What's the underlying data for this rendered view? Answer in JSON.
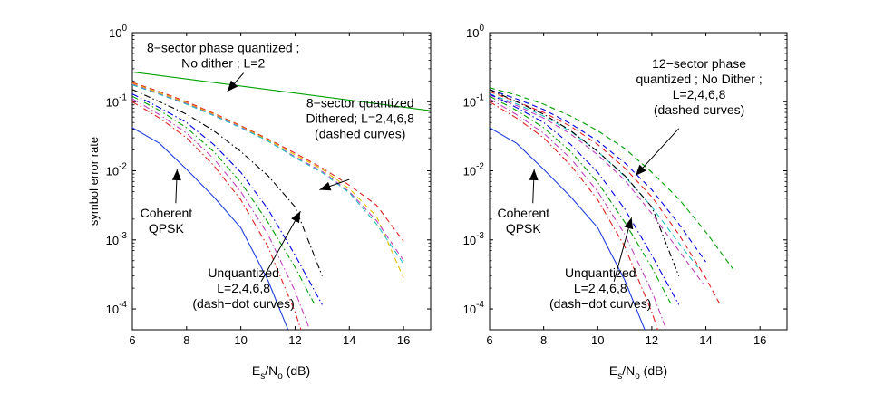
{
  "chart_data": [
    {
      "type": "line",
      "ylabel": "symbol error rate",
      "xlabel": {
        "main1": "E",
        "sub1": "s",
        "main2": "/N",
        "sub2": "o",
        "main3": " (dB)"
      },
      "xlim": [
        6,
        17
      ],
      "ylim": [
        5e-05,
        1
      ],
      "yscale": "log",
      "x_ticks": [
        6,
        8,
        10,
        12,
        14,
        16
      ],
      "y_ticks": [
        {
          "value": 1,
          "mant": "10",
          "exp": "0"
        },
        {
          "value": 0.1,
          "mant": "10",
          "exp": "-1"
        },
        {
          "value": 0.01,
          "mant": "10",
          "exp": "-2"
        },
        {
          "value": 0.001,
          "mant": "10",
          "exp": "-3"
        },
        {
          "value": 0.0001,
          "mant": "10",
          "exp": "-4"
        }
      ],
      "series": [
        {
          "style": "solid",
          "color": "#00a000",
          "x": [
            6,
            17
          ],
          "y": [
            0.27,
            0.074
          ]
        },
        {
          "style": "solid",
          "color": "#1f3fe0",
          "x": [
            6,
            7,
            8,
            9,
            10,
            11,
            12
          ],
          "y": [
            0.042,
            0.025,
            0.0105,
            0.0042,
            0.0015,
            0.00026,
            2.8e-05
          ]
        },
        {
          "style": "dash",
          "color": "#e02020",
          "x": [
            6,
            7,
            8,
            9,
            10,
            11,
            12,
            13,
            14,
            15,
            16
          ],
          "y": [
            0.19,
            0.14,
            0.1,
            0.068,
            0.045,
            0.029,
            0.018,
            0.011,
            0.0062,
            0.0032,
            0.00095
          ]
        },
        {
          "style": "dash",
          "color": "#e0c000",
          "x": [
            6,
            7,
            8,
            9,
            10,
            11,
            12,
            13,
            14,
            15,
            16
          ],
          "y": [
            0.185,
            0.135,
            0.096,
            0.066,
            0.044,
            0.028,
            0.017,
            0.0105,
            0.0055,
            0.0022,
            0.00028
          ]
        },
        {
          "style": "dash",
          "color": "#c040c0",
          "x": [
            6,
            7,
            8,
            9,
            10,
            11,
            12,
            13,
            14,
            15,
            16
          ],
          "y": [
            0.18,
            0.13,
            0.094,
            0.064,
            0.043,
            0.027,
            0.016,
            0.0098,
            0.005,
            0.0019,
            0.0005
          ]
        },
        {
          "style": "dash",
          "color": "#20c0c0",
          "x": [
            6,
            7,
            8,
            9,
            10,
            11,
            12,
            13,
            14,
            15,
            16
          ],
          "y": [
            0.175,
            0.128,
            0.092,
            0.063,
            0.042,
            0.027,
            0.0155,
            0.0094,
            0.0048,
            0.0017,
            0.00045
          ]
        },
        {
          "style": "dashdot",
          "color": "#000000",
          "x": [
            6,
            7,
            8,
            9,
            10,
            11,
            12,
            13
          ],
          "y": [
            0.15,
            0.1,
            0.066,
            0.038,
            0.019,
            0.0085,
            0.003,
            0.0003
          ]
        },
        {
          "style": "dashdot",
          "color": "#0000e0",
          "x": [
            6,
            7,
            8,
            9,
            10,
            11,
            12,
            13
          ],
          "y": [
            0.13,
            0.082,
            0.05,
            0.024,
            0.0095,
            0.0028,
            0.0006,
            0.000115
          ]
        },
        {
          "style": "dashdot",
          "color": "#00a000",
          "x": [
            6,
            7,
            8,
            9,
            10,
            11,
            12,
            12.7
          ],
          "y": [
            0.12,
            0.075,
            0.042,
            0.019,
            0.0068,
            0.0018,
            0.0004,
            0.00012
          ]
        },
        {
          "style": "dashdot",
          "color": "#c040c0",
          "x": [
            6,
            7,
            8,
            9,
            10,
            11,
            12,
            12.5
          ],
          "y": [
            0.11,
            0.065,
            0.035,
            0.015,
            0.005,
            0.0012,
            0.00018,
            5.5e-05
          ]
        },
        {
          "style": "dashdot",
          "color": "#e02020",
          "x": [
            6,
            7,
            8,
            9,
            10,
            11,
            12,
            12.3
          ],
          "y": [
            0.1,
            0.058,
            0.03,
            0.012,
            0.0038,
            0.0008,
            9e-05,
            4e-05
          ]
        }
      ],
      "annotations": [
        {
          "lines": [
            "8−sector phase quantized ;",
            "No dither ; L=2"
          ],
          "tx": 9.35,
          "ty": 0.52,
          "ax": 10.1,
          "ay": 0.26,
          "hx": 9.5,
          "hy": 0.14
        },
        {
          "lines": [
            "8−sector quantized",
            "Dithered; L=2,4,6,8",
            "(dashed curves)"
          ],
          "tx": 14.4,
          "ty": 0.083,
          "ax": 14.0,
          "ay": 0.0075,
          "hx": 12.9,
          "hy": 0.0053
        },
        {
          "lines": [
            "Coherent",
            "QPSK"
          ],
          "tx": 7.25,
          "ty": 0.0021,
          "ax": 7.6,
          "ay": 0.0034,
          "hx": 7.65,
          "hy": 0.0105
        },
        {
          "lines": [
            "Unquantized",
            "L=2,4,6,8",
            "(dash−dot curves)"
          ],
          "tx": 10.1,
          "ty": 0.00029,
          "ax": 10.75,
          "ay": 0.00025,
          "hx": 12.2,
          "hy": 0.0026
        }
      ]
    },
    {
      "type": "line",
      "ylabel": "",
      "xlabel": {
        "main1": "E",
        "sub1": "s",
        "main2": "/N",
        "sub2": "o",
        "main3": " (dB)"
      },
      "xlim": [
        6,
        17
      ],
      "ylim": [
        5e-05,
        1
      ],
      "yscale": "log",
      "x_ticks": [
        6,
        8,
        10,
        12,
        14,
        16
      ],
      "y_ticks": [
        {
          "value": 1,
          "mant": "10",
          "exp": "0"
        },
        {
          "value": 0.1,
          "mant": "10",
          "exp": "-1"
        },
        {
          "value": 0.01,
          "mant": "10",
          "exp": "-2"
        },
        {
          "value": 0.001,
          "mant": "10",
          "exp": "-3"
        },
        {
          "value": 0.0001,
          "mant": "10",
          "exp": "-4"
        }
      ],
      "series": [
        {
          "style": "solid",
          "color": "#1f3fe0",
          "x": [
            6,
            7,
            8,
            9,
            10,
            11,
            12
          ],
          "y": [
            0.042,
            0.025,
            0.0105,
            0.0042,
            0.0015,
            0.00026,
            2.8e-05
          ]
        },
        {
          "style": "dash",
          "color": "#00a000",
          "x": [
            6,
            7,
            8,
            9,
            10,
            11,
            12,
            13,
            14,
            15
          ],
          "y": [
            0.16,
            0.125,
            0.092,
            0.062,
            0.038,
            0.021,
            0.0095,
            0.0039,
            0.0013,
            0.00038
          ]
        },
        {
          "style": "dash",
          "color": "#0000e0",
          "x": [
            6,
            7,
            8,
            9,
            10,
            11,
            12,
            13,
            14
          ],
          "y": [
            0.15,
            0.11,
            0.077,
            0.048,
            0.027,
            0.013,
            0.0053,
            0.0017,
            0.00048
          ]
        },
        {
          "style": "dash",
          "color": "#e02020",
          "x": [
            6,
            7,
            8,
            9,
            10,
            11,
            12,
            13,
            14,
            14.5
          ],
          "y": [
            0.14,
            0.1,
            0.07,
            0.044,
            0.024,
            0.011,
            0.0042,
            0.0012,
            0.00028,
            0.00012
          ]
        },
        {
          "style": "dash",
          "color": "#20c0c0",
          "x": [
            6,
            7,
            8,
            9,
            10,
            11,
            12,
            13,
            13.7
          ],
          "y": [
            0.13,
            0.093,
            0.062,
            0.037,
            0.019,
            0.0083,
            0.003,
            0.0009,
            0.0004
          ]
        },
        {
          "style": "dash",
          "color": "#c040c0",
          "x": [
            6,
            7,
            8,
            9,
            10,
            11,
            12,
            13,
            13.9
          ],
          "y": [
            0.125,
            0.088,
            0.058,
            0.034,
            0.017,
            0.0073,
            0.0024,
            0.0007,
            0.00023
          ]
        },
        {
          "style": "dashdot",
          "color": "#000000",
          "x": [
            6,
            7,
            8,
            9,
            10,
            11,
            12,
            13
          ],
          "y": [
            0.15,
            0.1,
            0.066,
            0.038,
            0.019,
            0.0085,
            0.003,
            0.0003
          ]
        },
        {
          "style": "dashdot",
          "color": "#0000e0",
          "x": [
            6,
            7,
            8,
            9,
            10,
            11,
            12,
            13
          ],
          "y": [
            0.13,
            0.082,
            0.05,
            0.024,
            0.0095,
            0.0028,
            0.0006,
            0.000115
          ]
        },
        {
          "style": "dashdot",
          "color": "#00a000",
          "x": [
            6,
            7,
            8,
            9,
            10,
            11,
            12,
            12.7
          ],
          "y": [
            0.12,
            0.075,
            0.042,
            0.019,
            0.0068,
            0.0018,
            0.0004,
            0.00012
          ]
        },
        {
          "style": "dashdot",
          "color": "#c040c0",
          "x": [
            6,
            7,
            8,
            9,
            10,
            11,
            12,
            12.5
          ],
          "y": [
            0.11,
            0.065,
            0.035,
            0.015,
            0.005,
            0.0012,
            0.00018,
            5.5e-05
          ]
        },
        {
          "style": "dashdot",
          "color": "#e02020",
          "x": [
            6,
            7,
            8,
            9,
            10,
            11,
            12,
            12.3
          ],
          "y": [
            0.1,
            0.058,
            0.03,
            0.012,
            0.0038,
            0.0008,
            9e-05,
            4e-05
          ]
        }
      ],
      "annotations": [
        {
          "lines": [
            "12−sector phase",
            "quantized ; No Dither ;",
            "L=2,4,6,8",
            "(dashed curves)"
          ],
          "tx": 13.75,
          "ty": 0.31,
          "ax": 13.0,
          "ay": 0.041,
          "hx": 11.4,
          "hy": 0.0085
        },
        {
          "lines": [
            "Coherent",
            "QPSK"
          ],
          "tx": 7.25,
          "ty": 0.0021,
          "ax": 7.6,
          "ay": 0.0034,
          "hx": 7.65,
          "hy": 0.0105
        },
        {
          "lines": [
            "Unquantized",
            "L=2,4,6,8",
            "(dash−dot curves)"
          ],
          "tx": 10.1,
          "ty": 0.00029,
          "ax": 10.6,
          "ay": 0.00025,
          "hx": 11.25,
          "hy": 0.0021
        }
      ]
    }
  ]
}
